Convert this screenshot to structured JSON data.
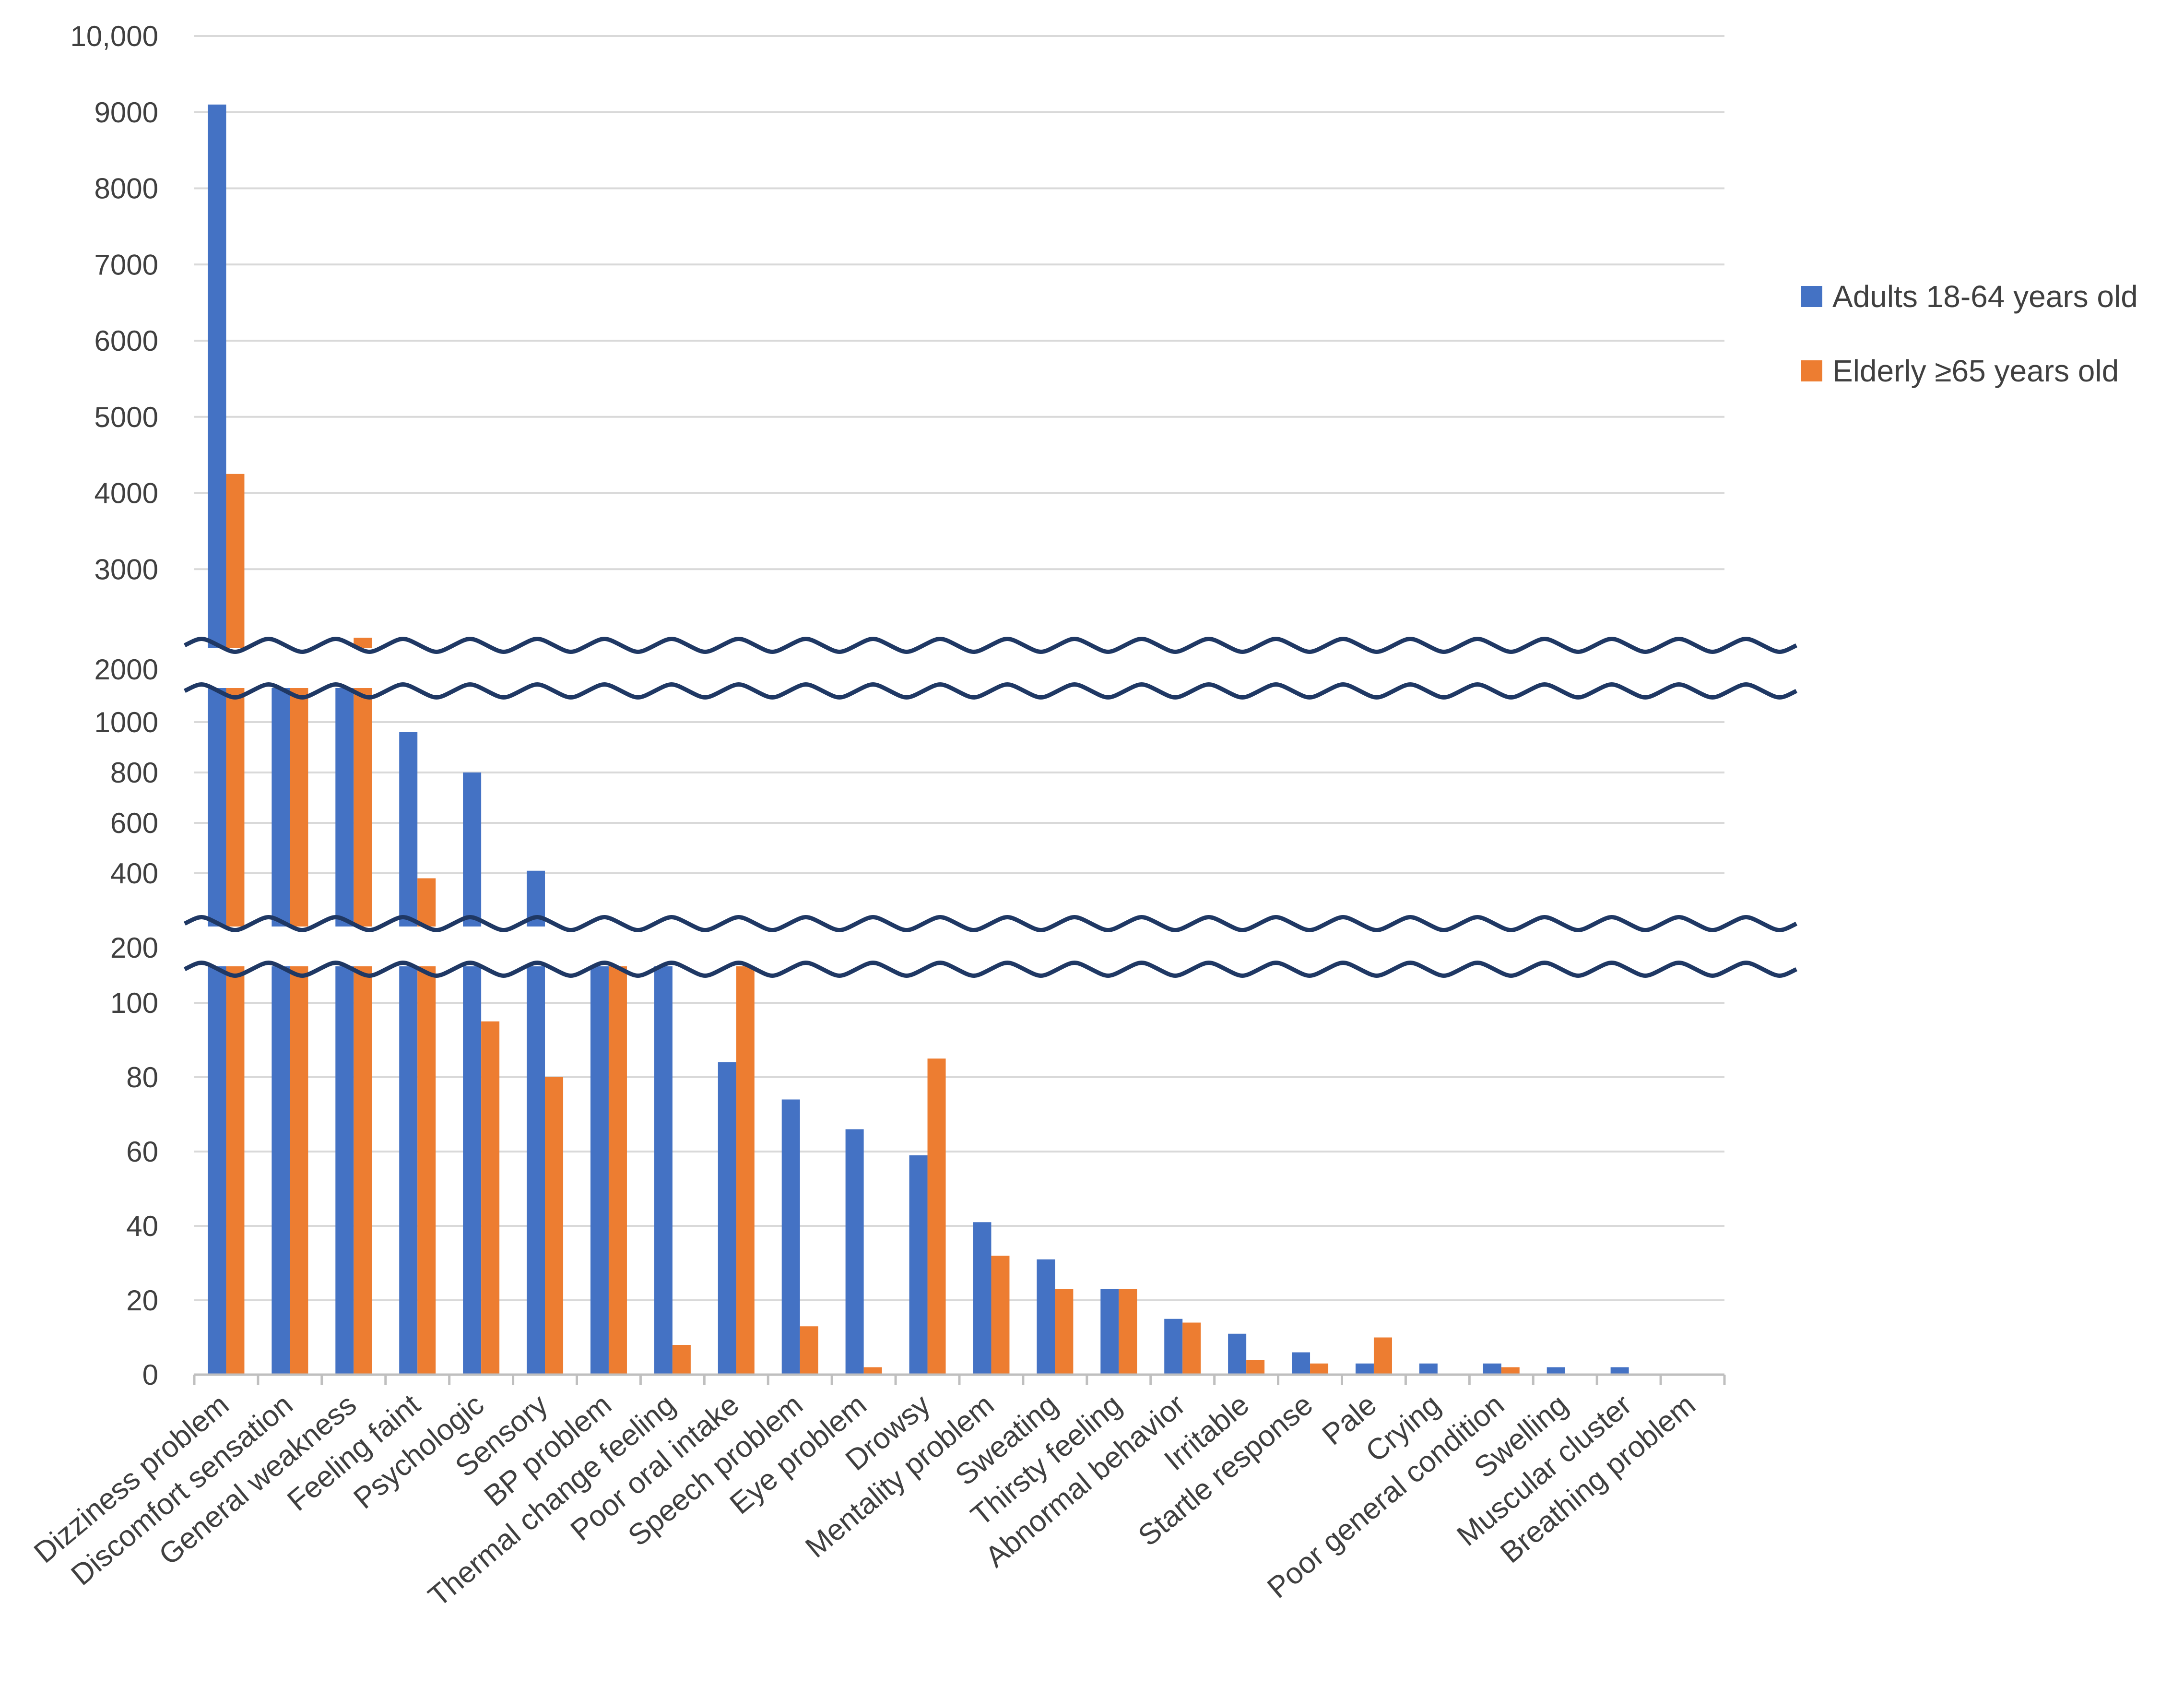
{
  "chart_data": {
    "type": "bar",
    "title": "",
    "xlabel": "",
    "ylabel": "",
    "broken_axis": true,
    "y_segments": [
      {
        "ticks": [
          0,
          20,
          40,
          60,
          80,
          100
        ],
        "range": [
          0,
          100
        ]
      },
      {
        "ticks": [
          200,
          400,
          600,
          800,
          1000
        ],
        "range": [
          200,
          1000
        ]
      },
      {
        "ticks": [
          2000,
          3000,
          4000,
          5000,
          6000,
          7000,
          8000,
          9000,
          10000
        ],
        "range": [
          2000,
          10000
        ]
      }
    ],
    "tick_labels": {
      "0": "0",
      "20": "20",
      "40": "40",
      "60": "60",
      "80": "80",
      "100": "100",
      "200": "200",
      "400": "400",
      "600": "600",
      "800": "800",
      "1000": "1000",
      "2000": "2000",
      "3000": "3000",
      "4000": "4000",
      "5000": "5000",
      "6000": "6000",
      "7000": "7000",
      "8000": "8000",
      "9000": "9000",
      "10000": "10,000"
    },
    "categories": [
      "Dizziness problem",
      "Discomfort sensation",
      "General weakness",
      "Feeling faint",
      "Psychologic",
      "Sensory",
      "BP problem",
      "Thermal change feeling",
      "Poor oral intake",
      "Speech problem",
      "Eye problem",
      "Drowsy",
      "Mentality problem",
      "Sweating",
      "Thirsty feeling",
      "Abnormal behavior",
      "Irritable",
      "Startle response",
      "Pale",
      "Crying",
      "Poor general condition",
      "Swelling",
      "Muscular cluster",
      "Breathing problem"
    ],
    "series": [
      {
        "name": "Adults 18-64 years old",
        "color": "#4472c4",
        "values": [
          9100,
          1300,
          1400,
          960,
          800,
          410,
          150,
          130,
          84,
          74,
          66,
          59,
          41,
          31,
          23,
          15,
          11,
          6,
          3,
          3,
          3,
          2,
          2,
          0
        ]
      },
      {
        "name": "Elderly ≥65 years old",
        "color": "#ed7d31",
        "values": [
          4250,
          1500,
          2100,
          380,
          95,
          80,
          108,
          8,
          130,
          13,
          2,
          85,
          32,
          23,
          23,
          14,
          4,
          3,
          10,
          0,
          2,
          0,
          0,
          0
        ]
      }
    ],
    "legend_position": "right",
    "grid": true
  }
}
